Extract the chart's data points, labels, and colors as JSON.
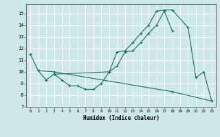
{
  "xlabel": "Humidex (Indice chaleur)",
  "bg_color": "#cce8e8",
  "grid_color": "#ffffff",
  "line_color": "#1a6b5a",
  "xlim": [
    -0.5,
    23.5
  ],
  "ylim": [
    7,
    15.8
  ],
  "yticks": [
    7,
    8,
    9,
    10,
    11,
    12,
    13,
    14,
    15
  ],
  "xticks": [
    0,
    1,
    2,
    3,
    4,
    5,
    6,
    7,
    8,
    9,
    10,
    11,
    12,
    13,
    14,
    15,
    16,
    17,
    18,
    19,
    20,
    21,
    22,
    23
  ],
  "line1_x": [
    0,
    1,
    2,
    3,
    4,
    5,
    6,
    7,
    8,
    9,
    10,
    11,
    12,
    13,
    14,
    15,
    16,
    17,
    18,
    20,
    21,
    22,
    23
  ],
  "line1_y": [
    11.5,
    10.1,
    9.3,
    9.8,
    9.3,
    8.8,
    8.8,
    8.5,
    8.5,
    9.0,
    10.0,
    11.7,
    11.8,
    12.5,
    13.3,
    14.0,
    15.2,
    15.3,
    15.3,
    13.8,
    9.5,
    10.0,
    7.5
  ],
  "line2_x": [
    3,
    10,
    11,
    12,
    13,
    14,
    15,
    16,
    17,
    18
  ],
  "line2_y": [
    9.8,
    10.0,
    10.5,
    11.7,
    11.8,
    12.5,
    13.3,
    14.0,
    15.2,
    13.5
  ],
  "line3_x": [
    1,
    3,
    18,
    23
  ],
  "line3_y": [
    10.1,
    10.0,
    8.3,
    7.5
  ]
}
